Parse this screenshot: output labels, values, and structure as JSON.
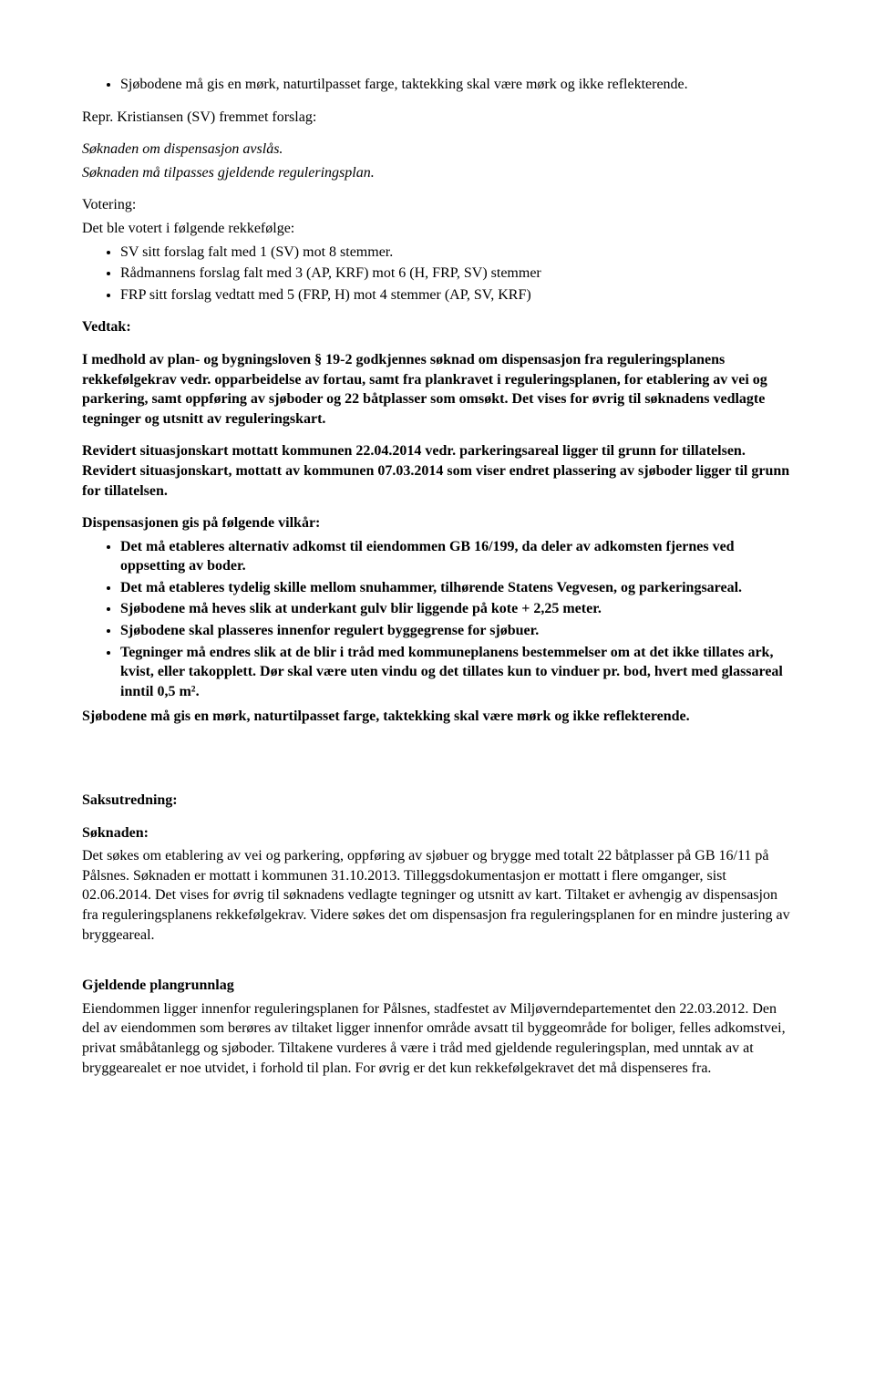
{
  "top_bullet": "Sjøbodene må gis en mørk, naturtilpasset farge, taktekking skal være mørk og ikke reflekterende.",
  "repr_line": "Repr. Kristiansen (SV) fremmet forslag:",
  "soknad_italic": "Søknaden om dispensasjon avslås.",
  "soknad_italic2": "Søknaden må tilpasses gjeldende reguleringsplan.",
  "votering_label": "Votering:",
  "votering_intro": "Det ble votert i følgende rekkefølge:",
  "votering_bullets": [
    "SV sitt forslag falt med 1 (SV) mot 8 stemmer.",
    "Rådmannens forslag falt med 3 (AP, KRF) mot 6 (H, FRP, SV) stemmer",
    "FRP sitt forslag vedtatt med 5 (FRP, H) mot 4 stemmer (AP, SV, KRF)"
  ],
  "vedtak_label": "Vedtak:",
  "vedtak_para1": "I medhold av plan- og bygningsloven § 19-2 godkjennes søknad om dispensasjon fra reguleringsplanens rekkefølgekrav vedr. opparbeidelse av fortau, samt fra plankravet i reguleringsplanen, for etablering av vei og parkering, samt oppføring av sjøboder og 22 båtplasser som omsøkt. Det vises for øvrig til søknadens vedlagte tegninger og utsnitt av reguleringskart.",
  "vedtak_para2": "Revidert situasjonskart mottatt kommunen 22.04.2014 vedr. parkeringsareal ligger til grunn for tillatelsen. Revidert situasjonskart, mottatt av kommunen 07.03.2014 som viser endret plassering av sjøboder ligger til grunn for tillatelsen.",
  "disp_label": "Dispensasjonen gis på følgende vilkår:",
  "disp_bullets": [
    "Det må etableres alternativ adkomst til eiendommen GB 16/199, da deler av adkomsten fjernes ved oppsetting av boder.",
    "Det må etableres tydelig skille mellom snuhammer, tilhørende Statens Vegvesen, og parkeringsareal.",
    "Sjøbodene må heves slik at underkant gulv blir liggende på kote + 2,25 meter.",
    "Sjøbodene skal plasseres innenfor regulert byggegrense for sjøbuer.",
    "Tegninger må endres slik at de blir i tråd med kommuneplanens bestemmelser om at det ikke tillates ark, kvist, eller takopplett. Dør skal være uten vindu og det tillates kun to vinduer pr. bod, hvert med glassareal inntil 0,5 m²."
  ],
  "disp_trailer": "Sjøbodene må gis en mørk, naturtilpasset farge, taktekking skal være mørk og ikke reflekterende.",
  "saksutredning_label": "Saksutredning:",
  "soknaden_label": "Søknaden:",
  "soknaden_body": "Det søkes om etablering av vei og parkering, oppføring av sjøbuer og brygge med totalt 22 båtplasser på GB 16/11 på Pålsnes. Søknaden er mottatt i kommunen 31.10.2013. Tilleggsdokumentasjon er mottatt i flere omganger, sist 02.06.2014. Det vises for øvrig til søknadens vedlagte tegninger og utsnitt av kart. Tiltaket er avhengig av dispensasjon fra reguleringsplanens rekkefølgekrav. Videre søkes det om dispensasjon fra reguleringsplanen for en mindre justering av bryggeareal.",
  "gjeldende_label": "Gjeldende plangrunnlag",
  "gjeldende_body": "Eiendommen ligger innenfor reguleringsplanen for Pålsnes, stadfestet av Miljøverndepartementet den 22.03.2012. Den del av eiendommen som berøres av tiltaket ligger innenfor område avsatt til byggeområde for boliger, felles adkomstvei, privat småbåtanlegg og sjøboder. Tiltakene vurderes å være i tråd med gjeldende reguleringsplan, med unntak av at bryggearealet er noe utvidet, i forhold til plan. For øvrig er det kun rekkefølgekravet det må dispenseres fra."
}
